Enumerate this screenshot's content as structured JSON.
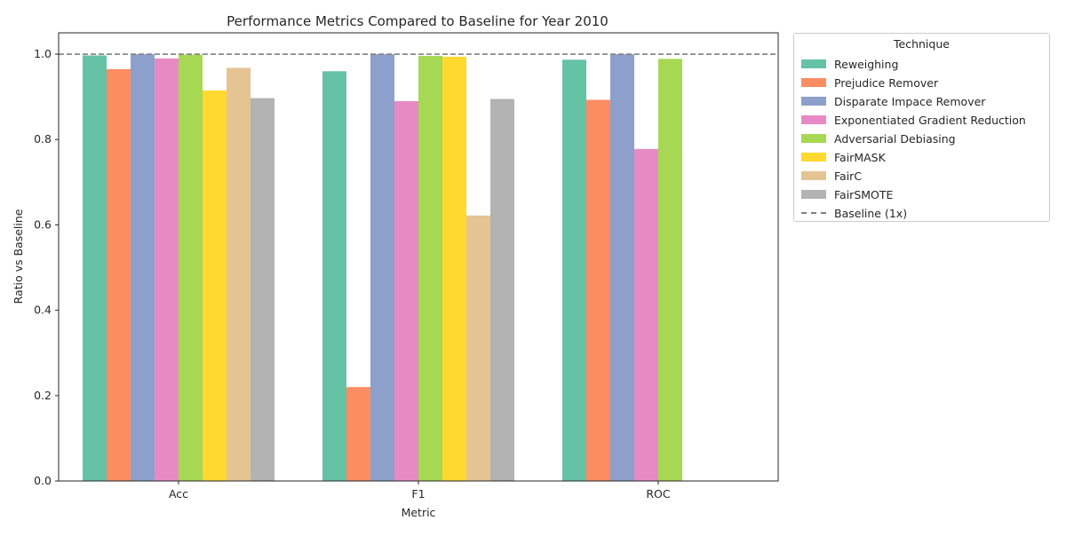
{
  "chart_data": {
    "type": "bar",
    "title": "Performance Metrics Compared to Baseline for Year 2010",
    "xlabel": "Metric",
    "ylabel": "Ratio vs Baseline",
    "ylim": [
      0,
      1.05
    ],
    "yticks": [
      "0.0",
      "0.2",
      "0.4",
      "0.6",
      "0.8",
      "1.0"
    ],
    "categories": [
      "Acc",
      "F1",
      "ROC"
    ],
    "legend_title": "Technique",
    "legend_position": "outside upper right",
    "baseline": {
      "name": "Baseline (1x)",
      "value": 1.0,
      "color": "#808080",
      "style": "dashed"
    },
    "series": [
      {
        "name": "Reweighing",
        "color": "#66c2a5",
        "values": [
          0.997,
          0.96,
          0.987
        ]
      },
      {
        "name": "Prejudice Remover",
        "color": "#fc8d62",
        "values": [
          0.965,
          0.22,
          0.893
        ]
      },
      {
        "name": "Disparate Impace Remover",
        "color": "#8da0cb",
        "values": [
          1.0,
          1.0,
          1.0
        ]
      },
      {
        "name": "Exponentiated Gradient Reduction",
        "color": "#e78ac3",
        "values": [
          0.99,
          0.89,
          0.778
        ]
      },
      {
        "name": "Adversarial Debiasing",
        "color": "#a6d854",
        "values": [
          0.999,
          0.996,
          0.989
        ]
      },
      {
        "name": "FairMASK",
        "color": "#ffd92f",
        "values": [
          0.915,
          0.994,
          null
        ]
      },
      {
        "name": "FairC",
        "color": "#e5c494",
        "values": [
          0.968,
          0.622,
          null
        ]
      },
      {
        "name": "FairSMOTE",
        "color": "#b3b3b3",
        "values": [
          0.897,
          0.895,
          null
        ]
      }
    ]
  }
}
